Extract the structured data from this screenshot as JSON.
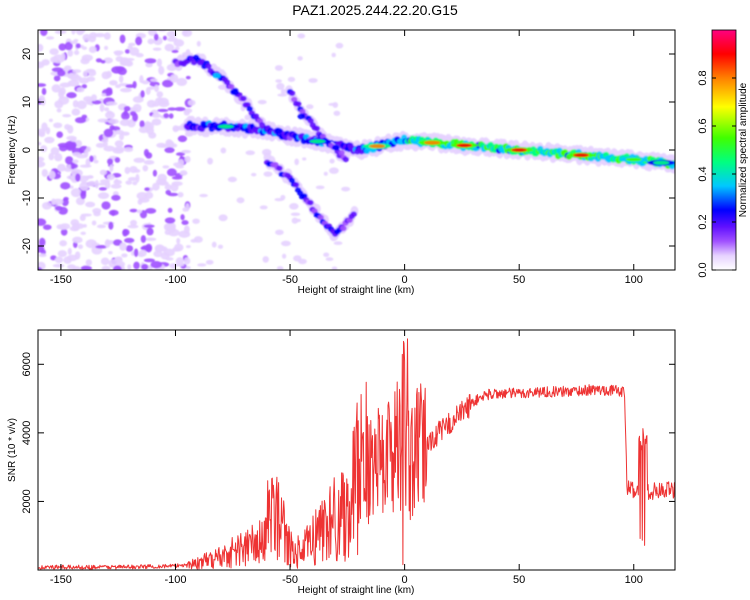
{
  "title": "PAZ1.2025.244.22.20.G15",
  "chart_data": [
    {
      "type": "heatmap",
      "xlabel": "Height of straight line (km)",
      "ylabel": "Frequency (Hz)",
      "xlim": [
        -160,
        118
      ],
      "ylim": [
        -25,
        25
      ],
      "xticks": [
        -150,
        -100,
        -50,
        0,
        50,
        100
      ],
      "yticks": [
        -20,
        -10,
        0,
        10,
        20
      ],
      "colorbar": {
        "label": "Normalized spectral amplitude",
        "range": [
          0.0,
          1.0
        ],
        "ticks": [
          0.0,
          0.2,
          0.4,
          0.6,
          0.8
        ],
        "colormap": [
          "#ffffff",
          "#e6d2ff",
          "#a050ff",
          "#6010ff",
          "#0000ff",
          "#00c8ff",
          "#00ff80",
          "#40ff00",
          "#ffff00",
          "#ff8000",
          "#ff0000",
          "#ff0080"
        ]
      },
      "features": [
        {
          "name": "main_trace",
          "x": [
            -95,
            -80,
            -60,
            -40,
            -20,
            0,
            25,
            50,
            75,
            100,
            118
          ],
          "freq": [
            5,
            5,
            4,
            2,
            0,
            2,
            1,
            0,
            -1,
            -2,
            -3
          ],
          "peak_amplitude": 0.95
        },
        {
          "name": "upper_branch",
          "x": [
            -100,
            -90,
            -80,
            -70,
            -62
          ],
          "freq": [
            18,
            19,
            15,
            10,
            5
          ]
        },
        {
          "name": "second_branch",
          "x": [
            -50,
            -45,
            -38,
            -30,
            -25
          ],
          "freq": [
            12,
            8,
            4,
            0,
            -2
          ]
        },
        {
          "name": "lower_branch",
          "x": [
            -60,
            -50,
            -40,
            -30,
            -22
          ],
          "freq": [
            -2,
            -6,
            -12,
            -18,
            -13
          ]
        }
      ]
    },
    {
      "type": "line",
      "xlabel": "Height of straight line (km)",
      "ylabel": "SNR (10 * v/v)",
      "xlim": [
        -160,
        118
      ],
      "ylim": [
        0,
        7000
      ],
      "xticks": [
        -150,
        -100,
        -50,
        0,
        50,
        100
      ],
      "yticks": [
        2000,
        4000,
        6000
      ],
      "color": "#ee3333",
      "series": [
        {
          "name": "SNR",
          "x": [
            -160,
            -120,
            -100,
            -90,
            -80,
            -70,
            -60,
            -55,
            -50,
            -45,
            -40,
            -35,
            -30,
            -25,
            -20,
            -18,
            -15,
            -10,
            -5,
            -2,
            0,
            2,
            5,
            10,
            15,
            20,
            25,
            30,
            35,
            40,
            50,
            60,
            70,
            80,
            90,
            96,
            97,
            100,
            103,
            104,
            106,
            110,
            118
          ],
          "values": [
            80,
            90,
            120,
            200,
            400,
            650,
            850,
            1400,
            600,
            500,
            900,
            1300,
            1500,
            1900,
            2400,
            2900,
            3000,
            3300,
            3500,
            3700,
            3900,
            3000,
            3400,
            3700,
            4000,
            4300,
            4600,
            4900,
            5100,
            5150,
            5150,
            5200,
            5200,
            5250,
            5250,
            5200,
            2400,
            2350,
            2200,
            600,
            2300,
            2300,
            2350
          ]
        }
      ]
    }
  ]
}
